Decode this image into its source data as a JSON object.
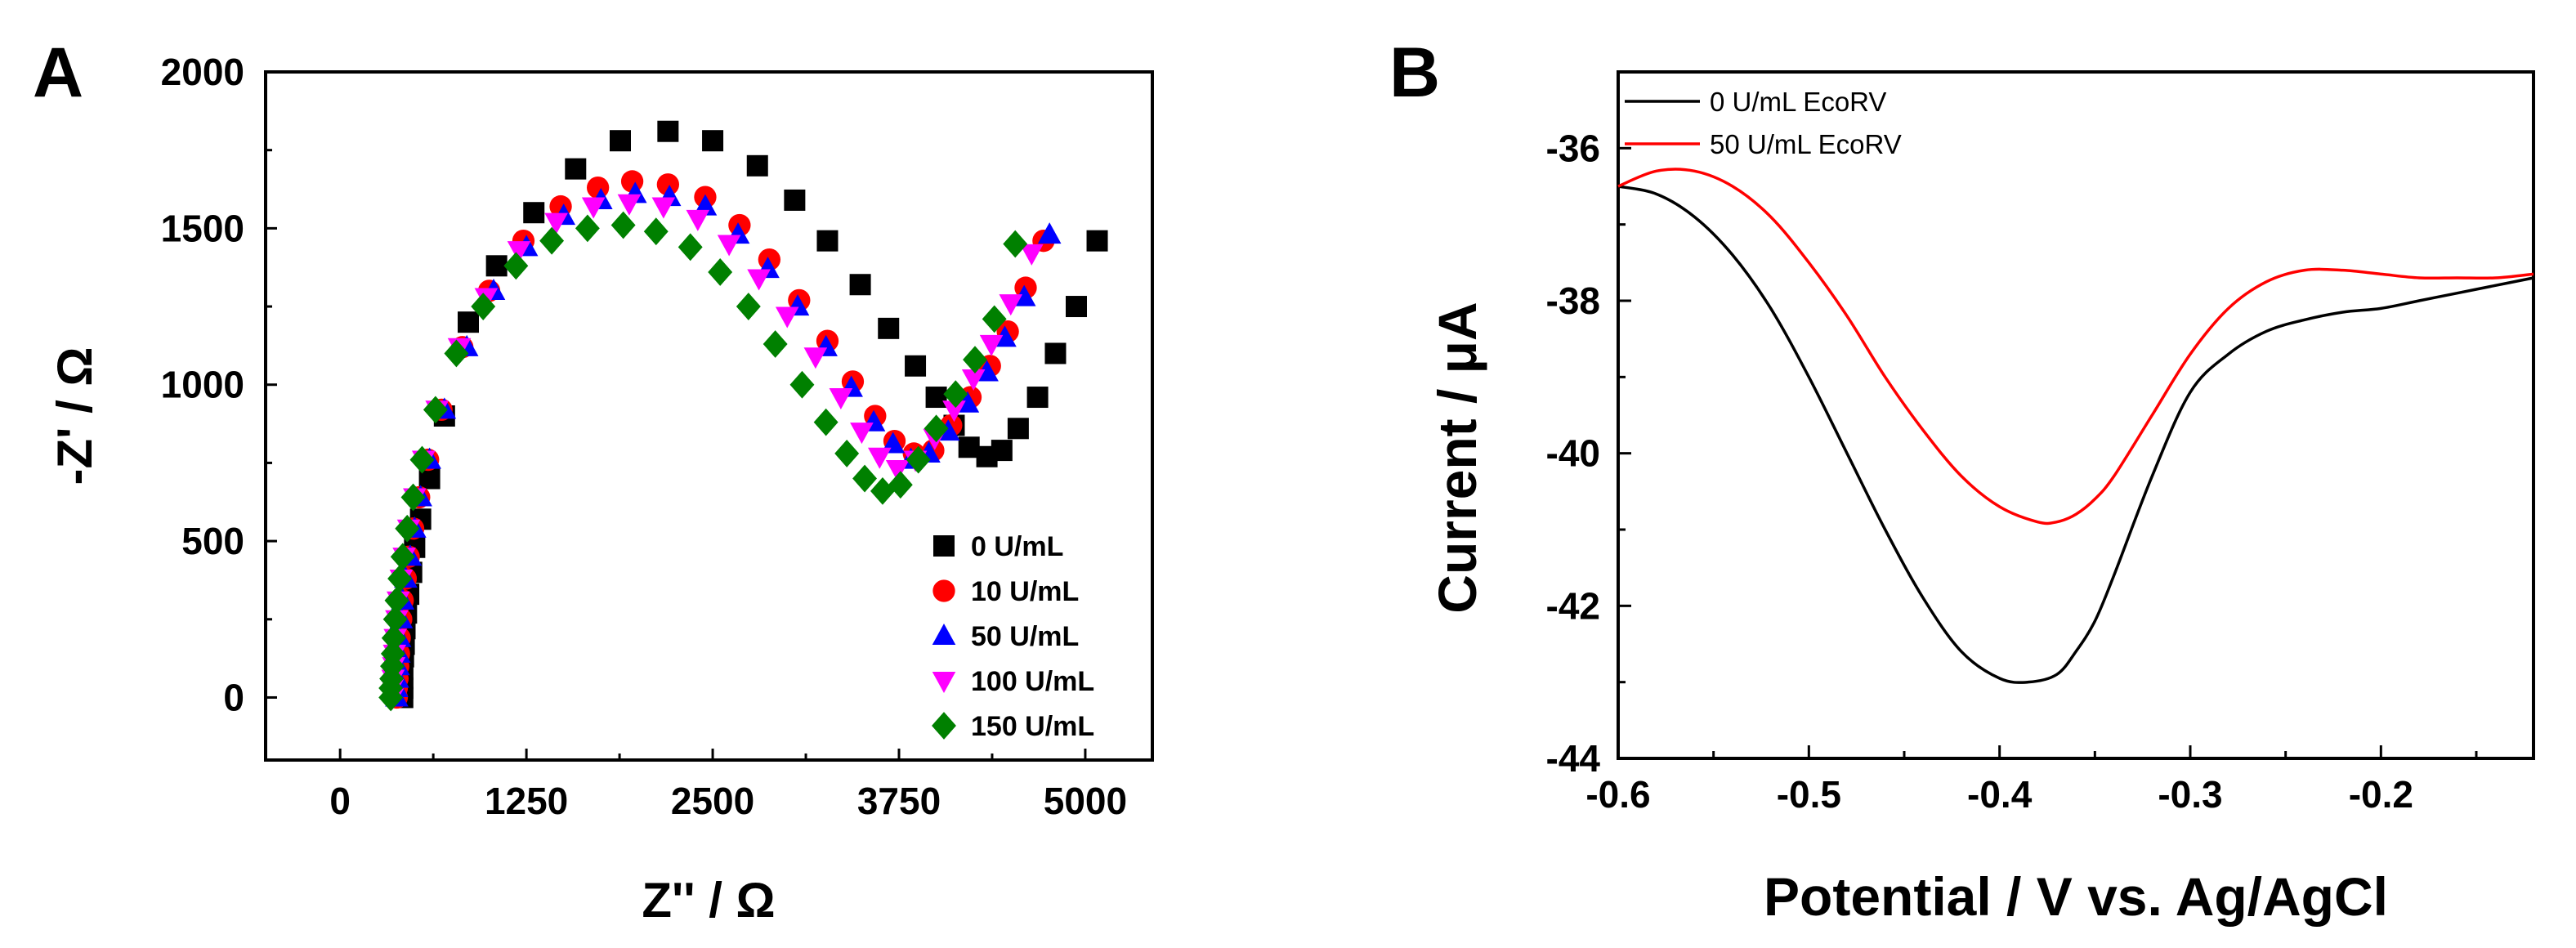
{
  "figure_labels": [
    "A",
    "B"
  ],
  "chart_data": [
    {
      "panel": "A",
      "type": "scatter",
      "title": "",
      "xlabel": "Z'' / Ω",
      "ylabel": "-Z' / Ω",
      "xlim": [
        -500,
        5450
      ],
      "ylim": [
        -200,
        2000
      ],
      "xticks": [
        0,
        1250,
        2500,
        3750,
        5000
      ],
      "xtick_labels": [
        "0",
        "1250",
        "2500",
        "3750",
        "5000"
      ],
      "yticks": [
        0,
        500,
        1000,
        1500,
        2000
      ],
      "ytick_labels": [
        "0",
        "500",
        "1000",
        "1500",
        "2000"
      ],
      "legend_position": "bottom-right",
      "series": [
        {
          "name": "0 U/mL",
          "marker": "square",
          "color": "#000000",
          "x": [
            420,
            420,
            420,
            420,
            425,
            430,
            435,
            445,
            460,
            480,
            500,
            540,
            600,
            700,
            860,
            1050,
            1300,
            1580,
            1880,
            2200,
            2500,
            2800,
            3050,
            3270,
            3490,
            3680,
            3860,
            4000,
            4120,
            4220,
            4340,
            4440,
            4550,
            4680,
            4800,
            4940,
            5080
          ],
          "y": [
            0,
            30,
            60,
            90,
            130,
            170,
            220,
            270,
            330,
            400,
            480,
            570,
            700,
            900,
            1200,
            1380,
            1550,
            1690,
            1780,
            1810,
            1780,
            1700,
            1590,
            1460,
            1320,
            1180,
            1060,
            960,
            870,
            800,
            770,
            790,
            860,
            960,
            1100,
            1250,
            1460
          ]
        },
        {
          "name": "10 U/mL",
          "marker": "circle",
          "color": "#ff0000",
          "x": [
            380,
            380,
            385,
            390,
            395,
            400,
            410,
            420,
            440,
            460,
            490,
            530,
            590,
            680,
            820,
            1000,
            1230,
            1480,
            1730,
            1960,
            2200,
            2450,
            2680,
            2880,
            3080,
            3270,
            3440,
            3590,
            3720,
            3850,
            3980,
            4100,
            4230,
            4360,
            4480,
            4600,
            4720
          ],
          "y": [
            0,
            30,
            60,
            100,
            140,
            190,
            250,
            310,
            380,
            450,
            540,
            640,
            760,
            920,
            1120,
            1300,
            1460,
            1570,
            1630,
            1650,
            1640,
            1600,
            1510,
            1400,
            1270,
            1140,
            1010,
            900,
            820,
            780,
            790,
            870,
            960,
            1060,
            1170,
            1310,
            1460
          ]
        },
        {
          "name": "50 U/mL",
          "marker": "triangle-up",
          "color": "#0000ff",
          "x": [
            380,
            380,
            385,
            390,
            395,
            400,
            410,
            420,
            440,
            470,
            500,
            540,
            600,
            700,
            850,
            1030,
            1250,
            1500,
            1750,
            1980,
            2210,
            2450,
            2670,
            2870,
            3070,
            3260,
            3430,
            3580,
            3710,
            3830,
            3950,
            4080,
            4210,
            4340,
            4460,
            4590,
            4760
          ],
          "y": [
            0,
            30,
            60,
            100,
            140,
            190,
            250,
            310,
            380,
            450,
            540,
            640,
            760,
            920,
            1120,
            1300,
            1440,
            1540,
            1590,
            1610,
            1600,
            1570,
            1480,
            1370,
            1250,
            1120,
            990,
            880,
            810,
            760,
            780,
            850,
            940,
            1040,
            1150,
            1280,
            1480
          ]
        },
        {
          "name": "100 U/mL",
          "marker": "triangle-down",
          "color": "#ff00ff",
          "x": [
            350,
            350,
            355,
            360,
            365,
            370,
            380,
            390,
            410,
            430,
            460,
            500,
            560,
            650,
            800,
            980,
            1200,
            1450,
            1700,
            1940,
            2170,
            2400,
            2610,
            2810,
            3000,
            3190,
            3360,
            3500,
            3620,
            3740,
            3860,
            3990,
            4120,
            4250,
            4370,
            4500,
            4640
          ],
          "y": [
            0,
            30,
            60,
            100,
            140,
            190,
            250,
            310,
            380,
            450,
            540,
            640,
            760,
            920,
            1120,
            1280,
            1430,
            1520,
            1570,
            1580,
            1570,
            1530,
            1450,
            1340,
            1220,
            1090,
            960,
            850,
            770,
            730,
            760,
            830,
            920,
            1020,
            1130,
            1260,
            1420
          ]
        },
        {
          "name": "150 U/mL",
          "marker": "diamond",
          "color": "#008000",
          "x": [
            340,
            340,
            345,
            350,
            355,
            360,
            370,
            380,
            400,
            420,
            450,
            490,
            550,
            640,
            780,
            960,
            1180,
            1420,
            1660,
            1900,
            2120,
            2350,
            2550,
            2740,
            2920,
            3100,
            3260,
            3400,
            3520,
            3640,
            3760,
            3880,
            4000,
            4130,
            4260,
            4390,
            4530
          ],
          "y": [
            0,
            30,
            60,
            100,
            140,
            190,
            250,
            310,
            380,
            450,
            540,
            640,
            760,
            920,
            1100,
            1250,
            1380,
            1460,
            1500,
            1510,
            1490,
            1440,
            1360,
            1250,
            1130,
            1000,
            880,
            780,
            700,
            660,
            680,
            760,
            860,
            970,
            1080,
            1210,
            1450
          ]
        }
      ]
    },
    {
      "panel": "B",
      "type": "line",
      "title": "",
      "xlabel": "Potential / V vs. Ag/AgCl",
      "ylabel": "Current / μA",
      "xlim": [
        -0.6,
        -0.12
      ],
      "ylim": [
        -44,
        -35
      ],
      "xticks": [
        -0.6,
        -0.5,
        -0.4,
        -0.3,
        -0.2
      ],
      "xtick_labels": [
        "-0.6",
        "-0.5",
        "-0.4",
        "-0.3",
        "-0.2"
      ],
      "yticks": [
        -44,
        -42,
        -40,
        -38,
        -36
      ],
      "ytick_labels": [
        "-44",
        "-42",
        "-40",
        "-38",
        "-36"
      ],
      "legend_position": "top-left",
      "series": [
        {
          "name": "0 U/mL EcoRV",
          "color": "#000000",
          "x": [
            -0.6,
            -0.58,
            -0.56,
            -0.54,
            -0.52,
            -0.5,
            -0.48,
            -0.46,
            -0.44,
            -0.42,
            -0.4,
            -0.385,
            -0.37,
            -0.36,
            -0.35,
            -0.34,
            -0.32,
            -0.3,
            -0.28,
            -0.26,
            -0.24,
            -0.22,
            -0.2,
            -0.18,
            -0.16,
            -0.14,
            -0.12
          ],
          "y": [
            -36.5,
            -36.6,
            -36.9,
            -37.4,
            -38.1,
            -39.0,
            -40.0,
            -41.0,
            -41.9,
            -42.6,
            -42.95,
            -43.0,
            -42.9,
            -42.6,
            -42.2,
            -41.6,
            -40.3,
            -39.2,
            -38.7,
            -38.4,
            -38.25,
            -38.15,
            -38.1,
            -38.0,
            -37.9,
            -37.8,
            -37.7
          ]
        },
        {
          "name": "50 U/mL EcoRV",
          "color": "#ff0000",
          "x": [
            -0.6,
            -0.58,
            -0.56,
            -0.54,
            -0.52,
            -0.5,
            -0.48,
            -0.46,
            -0.44,
            -0.42,
            -0.4,
            -0.38,
            -0.37,
            -0.36,
            -0.35,
            -0.34,
            -0.32,
            -0.3,
            -0.28,
            -0.26,
            -0.24,
            -0.22,
            -0.2,
            -0.18,
            -0.16,
            -0.14,
            -0.12
          ],
          "y": [
            -36.5,
            -36.3,
            -36.3,
            -36.5,
            -36.9,
            -37.5,
            -38.2,
            -39.0,
            -39.7,
            -40.3,
            -40.7,
            -40.9,
            -40.9,
            -40.8,
            -40.6,
            -40.3,
            -39.5,
            -38.7,
            -38.1,
            -37.75,
            -37.6,
            -37.6,
            -37.65,
            -37.7,
            -37.7,
            -37.7,
            -37.65
          ]
        }
      ]
    }
  ]
}
